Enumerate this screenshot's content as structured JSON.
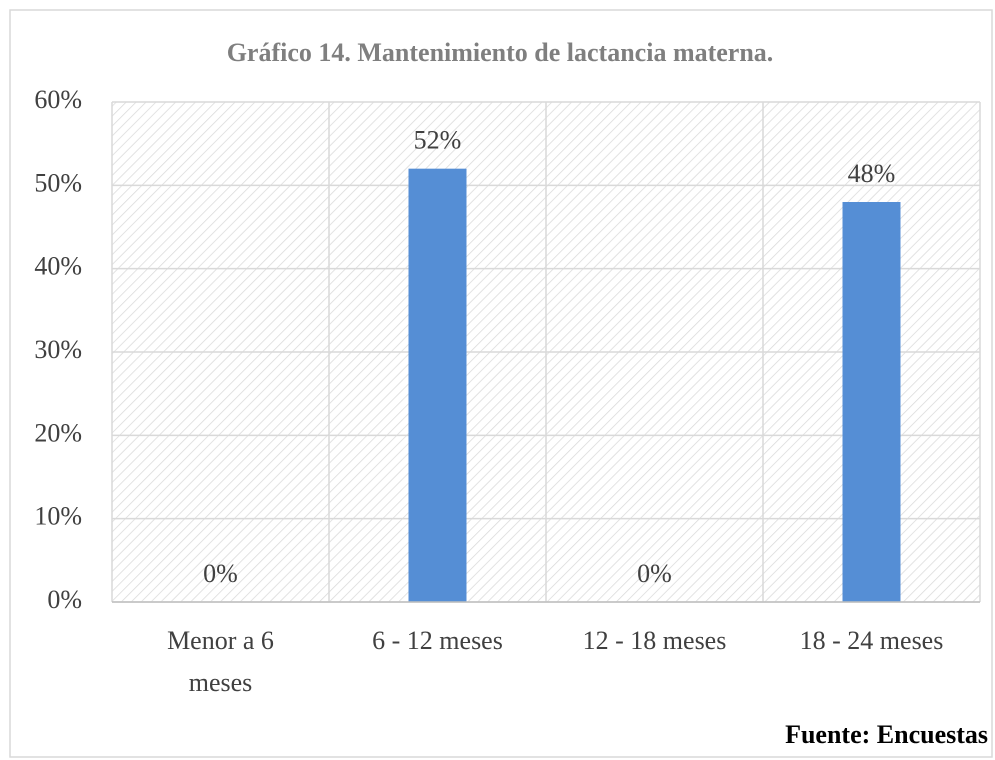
{
  "chart_data": {
    "type": "bar",
    "title": "Gráfico 14. Mantenimiento de lactancia materna.",
    "categories": [
      "Menor a 6 meses",
      "6 - 12 meses",
      "12 - 18 meses",
      "18 - 24 meses"
    ],
    "values": [
      0,
      52,
      0,
      48
    ],
    "value_labels": [
      "0%",
      "52%",
      "0%",
      "48%"
    ],
    "color": "#558ed5",
    "ylim": [
      0,
      60
    ],
    "yticks": [
      {
        "value": 0,
        "label": "0%"
      },
      {
        "value": 10,
        "label": "10%"
      },
      {
        "value": 20,
        "label": "20%"
      },
      {
        "value": 30,
        "label": "30%"
      },
      {
        "value": 40,
        "label": "40%"
      },
      {
        "value": 50,
        "label": "50%"
      },
      {
        "value": 60,
        "label": "60%"
      }
    ],
    "grid": true,
    "source": "Fuente: Encuestas"
  }
}
